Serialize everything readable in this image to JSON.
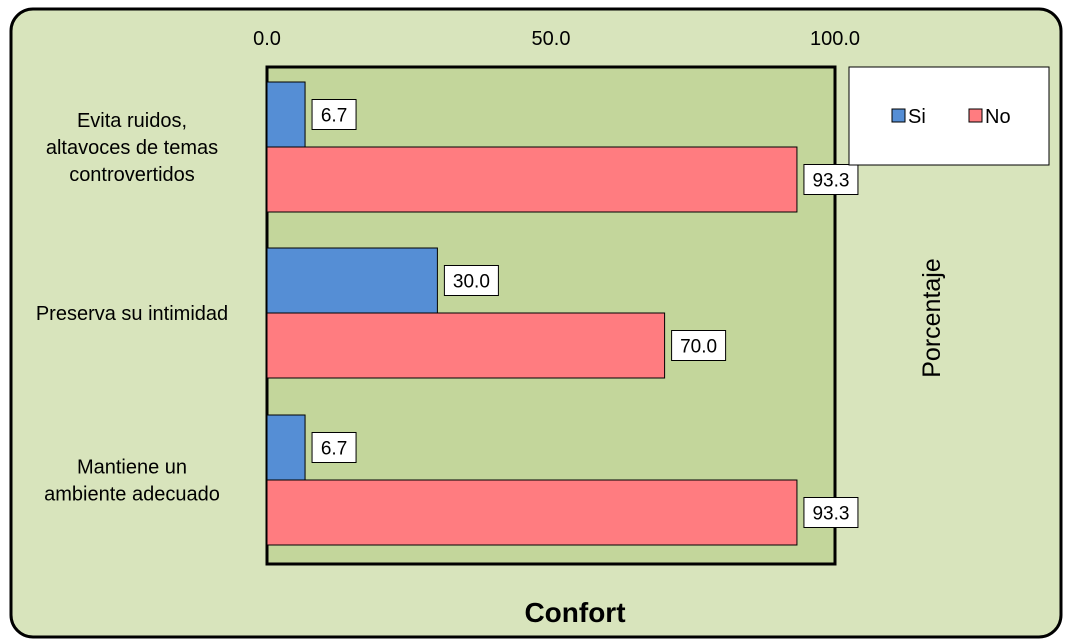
{
  "chart_data": {
    "type": "bar",
    "orientation": "horizontal",
    "title": "Confort",
    "xlabel": "Porcentaje",
    "categories": [
      [
        "Evita ruidos,",
        "altavoces de temas",
        "controvertidos"
      ],
      [
        "Preserva su intimidad"
      ],
      [
        "Mantiene un",
        "ambiente adecuado"
      ]
    ],
    "series": [
      {
        "name": "Si",
        "values": [
          6.7,
          30.0,
          6.7
        ],
        "color": "#558ed5"
      },
      {
        "name": "No",
        "values": [
          93.3,
          70.0,
          93.3
        ],
        "color": "#ff7c80"
      }
    ],
    "value_labels": [
      [
        "6.7",
        "30.0",
        "6.7"
      ],
      [
        "93.3",
        "70.0",
        "93.3"
      ]
    ],
    "xlim": [
      0,
      100
    ],
    "xticks": [
      0,
      50,
      100
    ],
    "xtick_labels": [
      "0.0",
      "50.0",
      "100.0"
    ],
    "x_axis_position": "top",
    "grid": false,
    "legend_position": "top-right",
    "colors": {
      "outer_background": "#d8e4bc",
      "plot_background": "#c3d69b",
      "border": "#000000"
    }
  }
}
